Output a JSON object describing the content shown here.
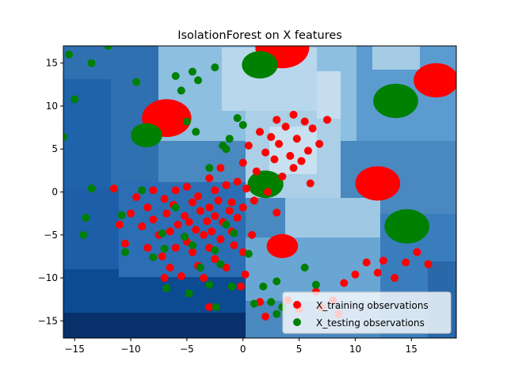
{
  "chart_data": {
    "type": "scatter",
    "title": "IsolationForest on X features",
    "xlabel": "",
    "ylabel": "",
    "xlim": [
      -16,
      19
    ],
    "ylim": [
      -17,
      17
    ],
    "x_ticks": [
      -15,
      -10,
      -5,
      0,
      5,
      10,
      15
    ],
    "y_ticks": [
      -15,
      -10,
      -5,
      0,
      5,
      10,
      15
    ],
    "x_tick_labels": [
      "−15",
      "−10",
      "−5",
      "0",
      "5",
      "10",
      "15"
    ],
    "y_tick_labels": [
      "−15",
      "−10",
      "−5",
      "0",
      "5",
      "10",
      "15"
    ],
    "legend_position": "lower-right",
    "grid": false,
    "background": "decision-function contour, blues colormap",
    "series": [
      {
        "name": "X_training observations",
        "color": "#ff0000",
        "points": [
          [
            -11.5,
            0.4
          ],
          [
            -11,
            -3.8
          ],
          [
            -10.5,
            -6
          ],
          [
            -10,
            -2.5
          ],
          [
            -9.5,
            -0.6
          ],
          [
            -9,
            -4
          ],
          [
            -8.5,
            -1.8
          ],
          [
            -8.5,
            -6.5
          ],
          [
            -8,
            0.2
          ],
          [
            -8,
            -3.2
          ],
          [
            -7.5,
            -5
          ],
          [
            -7.2,
            -7.5
          ],
          [
            -7,
            -0.8
          ],
          [
            -7,
            -10
          ],
          [
            -6.8,
            -2.5
          ],
          [
            -6.5,
            -4.6
          ],
          [
            -6.5,
            -8.8
          ],
          [
            -6.2,
            -1.5
          ],
          [
            -6,
            0.2
          ],
          [
            -6,
            -6.5
          ],
          [
            -5.8,
            -3.8
          ],
          [
            -5.5,
            -9.8
          ],
          [
            -5.2,
            -2.8
          ],
          [
            -5,
            0.6
          ],
          [
            -5,
            -5.8
          ],
          [
            -4.8,
            -3.5
          ],
          [
            -4.5,
            -1.2
          ],
          [
            -4.5,
            -7
          ],
          [
            -4.2,
            -4.4
          ],
          [
            -4,
            -0.5
          ],
          [
            -4,
            -8.6
          ],
          [
            -3.8,
            -2.2
          ],
          [
            -3.5,
            -5
          ],
          [
            -3.5,
            -10
          ],
          [
            -3.2,
            -3.4
          ],
          [
            -3,
            1.6
          ],
          [
            -3,
            -1.8
          ],
          [
            -3,
            -6.5
          ],
          [
            -2.8,
            -4.6
          ],
          [
            -2.5,
            0.2
          ],
          [
            -2.5,
            -2.8
          ],
          [
            -2.5,
            -7.8
          ],
          [
            -2.2,
            -1
          ],
          [
            -2,
            -5.5
          ],
          [
            -2,
            2.8
          ],
          [
            -1.8,
            -3.5
          ],
          [
            -1.5,
            -8.8
          ],
          [
            -1.5,
            0.8
          ],
          [
            -1.2,
            -2.2
          ],
          [
            -1,
            -4.6
          ],
          [
            -1,
            -1.2
          ],
          [
            -0.8,
            -6.2
          ],
          [
            -0.5,
            1.2
          ],
          [
            -0.5,
            -3
          ],
          [
            -0.2,
            -11
          ],
          [
            0,
            3.4
          ],
          [
            0,
            -1.8
          ],
          [
            0,
            -7
          ],
          [
            0.3,
            0.4
          ],
          [
            0.5,
            5.4
          ],
          [
            0.8,
            -5
          ],
          [
            1,
            -1
          ],
          [
            1.2,
            2.4
          ],
          [
            1.5,
            7
          ],
          [
            1.5,
            -12.8
          ],
          [
            2,
            4.6
          ],
          [
            2.2,
            0
          ],
          [
            2.5,
            6.4
          ],
          [
            2.8,
            3.8
          ],
          [
            3,
            8.4
          ],
          [
            3,
            -2.4
          ],
          [
            3.2,
            5.6
          ],
          [
            3.5,
            1.8
          ],
          [
            3.5,
            -6.4
          ],
          [
            3.8,
            7.6
          ],
          [
            4,
            -12.6
          ],
          [
            4.2,
            4.2
          ],
          [
            4.5,
            9
          ],
          [
            4.5,
            2.8
          ],
          [
            4.8,
            6.2
          ],
          [
            5,
            -13.6
          ],
          [
            5.2,
            3.6
          ],
          [
            5.5,
            8.2
          ],
          [
            5.8,
            4.8
          ],
          [
            6,
            1
          ],
          [
            6.2,
            7.4
          ],
          [
            6.5,
            -11.6
          ],
          [
            6.8,
            5.6
          ],
          [
            7,
            -13.4
          ],
          [
            7.5,
            8.4
          ],
          [
            8,
            -12.6
          ],
          [
            8.5,
            -14.2
          ],
          [
            9,
            -10.6
          ],
          [
            10,
            -9.6
          ],
          [
            11,
            -8.2
          ],
          [
            12,
            -9.4
          ],
          [
            12.5,
            -8
          ],
          [
            13.5,
            -10
          ],
          [
            14.5,
            -8.2
          ],
          [
            15.5,
            -7
          ],
          [
            16.5,
            -8.4
          ],
          [
            2,
            -14.5
          ],
          [
            -3,
            -13.4
          ],
          [
            0.2,
            -9.6
          ]
        ]
      },
      {
        "name": "X_testing observations",
        "color": "#008000",
        "points": [
          [
            -15.5,
            16
          ],
          [
            -13.5,
            15
          ],
          [
            -12,
            17
          ],
          [
            -9.5,
            12.8
          ],
          [
            -16,
            6.4
          ],
          [
            -15,
            10.8
          ],
          [
            -13.5,
            0.4
          ],
          [
            -14,
            -3
          ],
          [
            -14.2,
            -5
          ],
          [
            -10.8,
            -2.7
          ],
          [
            -10.5,
            -7
          ],
          [
            -9,
            0.2
          ],
          [
            -8,
            -7.6
          ],
          [
            -7.2,
            -4.8
          ],
          [
            -7,
            -6.6
          ],
          [
            -6.8,
            -11.2
          ],
          [
            -6,
            -1.8
          ],
          [
            -5,
            8.2
          ],
          [
            -5.5,
            11.8
          ],
          [
            -5.2,
            -5.2
          ],
          [
            -4.8,
            -11.8
          ],
          [
            -4.5,
            -6.2
          ],
          [
            -4.2,
            7
          ],
          [
            -3.8,
            -8.8
          ],
          [
            -3,
            2.8
          ],
          [
            -3,
            -10.8
          ],
          [
            -2.5,
            -6.8
          ],
          [
            -2.4,
            -13.4
          ],
          [
            -2,
            -8.4
          ],
          [
            -1.8,
            5.4
          ],
          [
            -1.5,
            -3.8
          ],
          [
            -1.5,
            5
          ],
          [
            -1.2,
            6.2
          ],
          [
            -1,
            -11
          ],
          [
            -0.8,
            -4.8
          ],
          [
            -0.5,
            8.6
          ],
          [
            0.5,
            -7.2
          ],
          [
            1,
            -13
          ],
          [
            1.8,
            -11
          ],
          [
            2.5,
            -12.8
          ],
          [
            3,
            -10.4
          ],
          [
            3.5,
            -13.4
          ],
          [
            5.5,
            -8.8
          ],
          [
            6.5,
            -10.8
          ],
          [
            -4,
            13
          ],
          [
            -4.5,
            14
          ],
          [
            -2.5,
            14.5
          ],
          [
            -6,
            13.5
          ],
          [
            0,
            7.8
          ],
          [
            3,
            -14.2
          ]
        ]
      }
    ],
    "outlier_clusters": [
      {
        "series": "X_training observations",
        "center": [
          -6.8,
          8.6
        ],
        "radius": 2.2
      },
      {
        "series": "X_training observations",
        "center": [
          3.5,
          16.8
        ],
        "radius": 2.4
      },
      {
        "series": "X_training observations",
        "center": [
          17.2,
          13.0
        ],
        "radius": 2.0
      },
      {
        "series": "X_training observations",
        "center": [
          12.0,
          1.0
        ],
        "radius": 2.0
      },
      {
        "series": "X_training observations",
        "center": [
          3.5,
          -6.3
        ],
        "radius": 1.4
      },
      {
        "series": "X_testing observations",
        "center": [
          -8.6,
          6.6
        ],
        "radius": 1.4
      },
      {
        "series": "X_testing observations",
        "center": [
          1.5,
          14.8
        ],
        "radius": 1.6
      },
      {
        "series": "X_testing observations",
        "center": [
          13.6,
          10.6
        ],
        "radius": 2.0
      },
      {
        "series": "X_testing observations",
        "center": [
          2.0,
          0.9
        ],
        "radius": 1.6
      },
      {
        "series": "X_testing observations",
        "center": [
          14.6,
          -4.0
        ],
        "radius": 2.0
      }
    ]
  }
}
